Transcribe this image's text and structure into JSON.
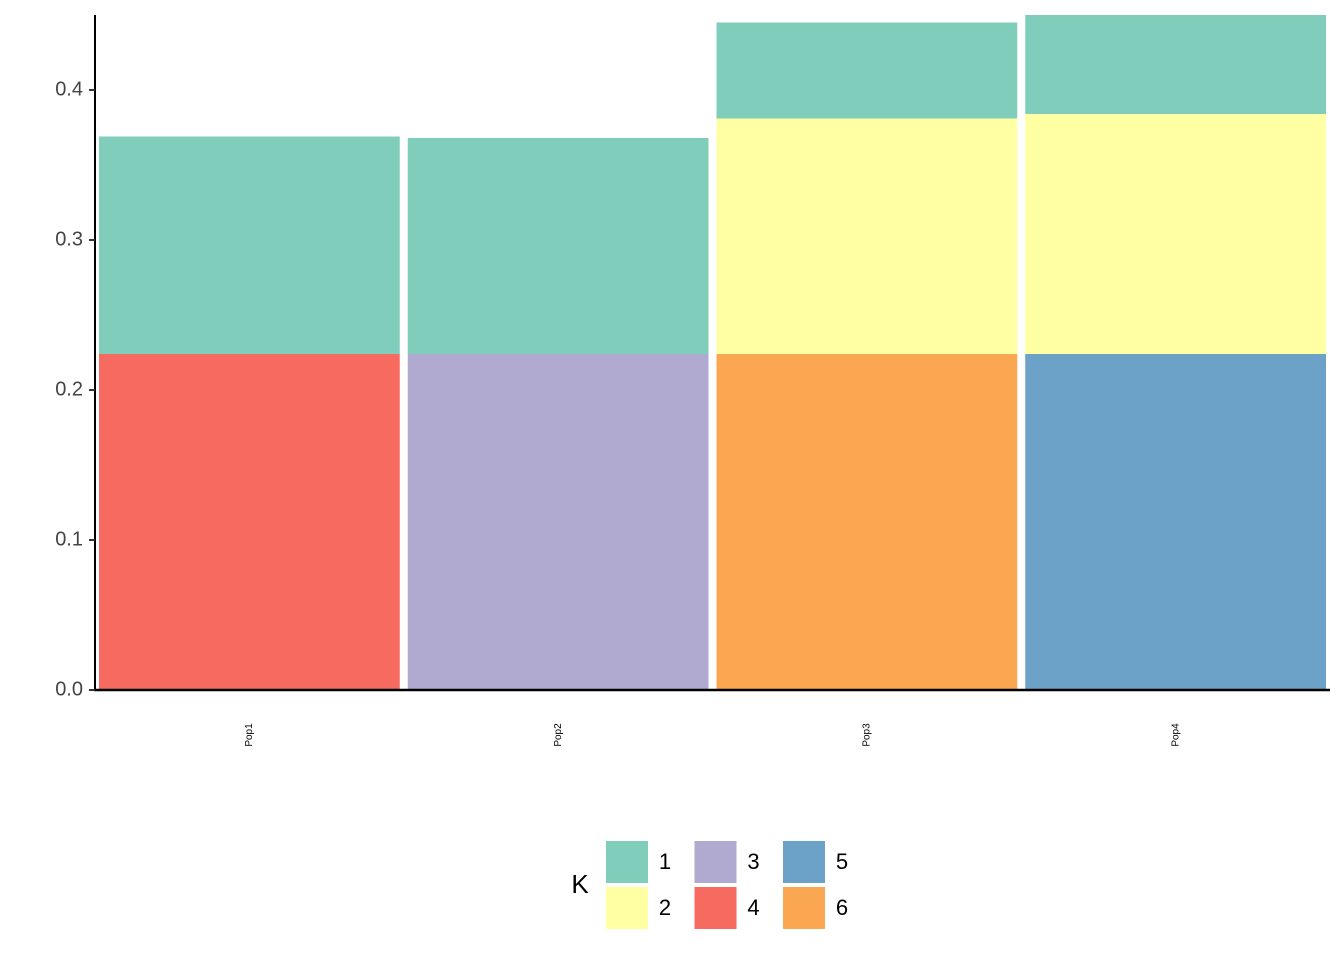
{
  "chart_data": {
    "type": "stacked-bar",
    "categories": [
      "Pop1",
      "Pop2",
      "Pop3",
      "Pop4"
    ],
    "series": [
      {
        "name": "1",
        "color": "#80cdbc",
        "values": [
          0.145,
          0.144,
          0.064,
          0.066
        ]
      },
      {
        "name": "2",
        "color": "#ffffa3",
        "values": [
          null,
          null,
          0.157,
          0.16
        ]
      },
      {
        "name": "3",
        "color": "#b0aad0",
        "values": [
          null,
          0.224,
          null,
          null
        ]
      },
      {
        "name": "4",
        "color": "#f76a60",
        "values": [
          0.224,
          null,
          null,
          null
        ]
      },
      {
        "name": "5",
        "color": "#6ca2c8",
        "values": [
          null,
          null,
          null,
          0.224
        ]
      },
      {
        "name": "6",
        "color": "#fba651",
        "values": [
          null,
          null,
          0.224,
          null
        ]
      }
    ],
    "legend_title": "K",
    "ylim": [
      0,
      0.45
    ],
    "yticks": [
      {
        "value": 0,
        "label": "0.0"
      },
      0.1,
      0.2,
      0.3,
      0.4
    ],
    "grid": false
  }
}
